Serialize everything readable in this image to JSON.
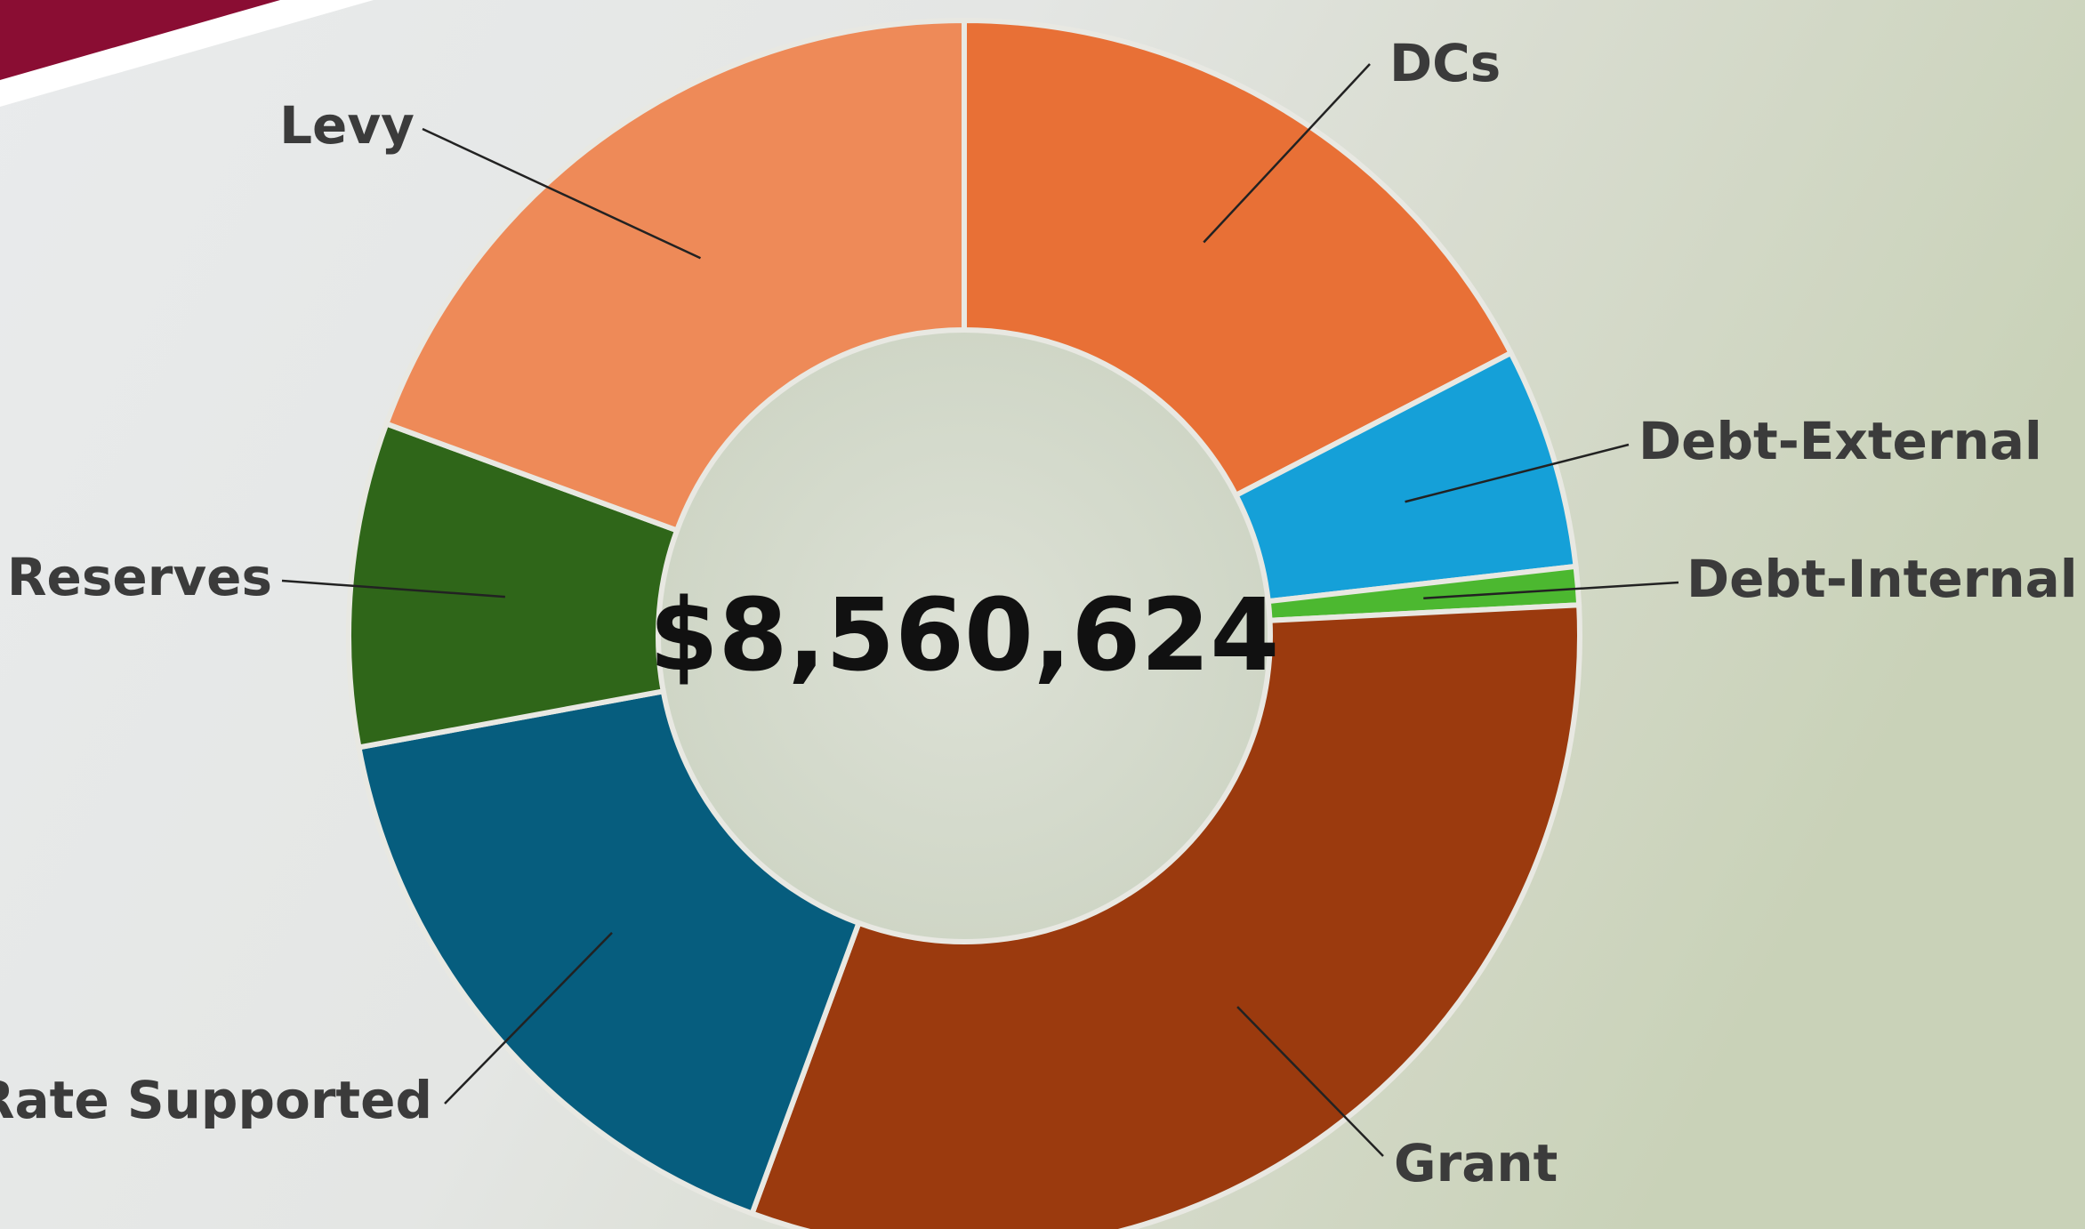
{
  "chart_data": {
    "type": "donut",
    "center_label": "$8,560,624",
    "categories": [
      "DCs",
      "Debt-External",
      "Debt-Internal",
      "Grant",
      "Rate Supported",
      "Reserves",
      "Levy"
    ],
    "values": [
      17.4,
      5.8,
      1.0,
      31.4,
      16.5,
      8.5,
      19.4
    ],
    "colors": [
      "#e87036",
      "#15a0d8",
      "#4cb830",
      "#9b3a0e",
      "#065d7e",
      "#2f6619",
      "#ee8a58"
    ]
  }
}
